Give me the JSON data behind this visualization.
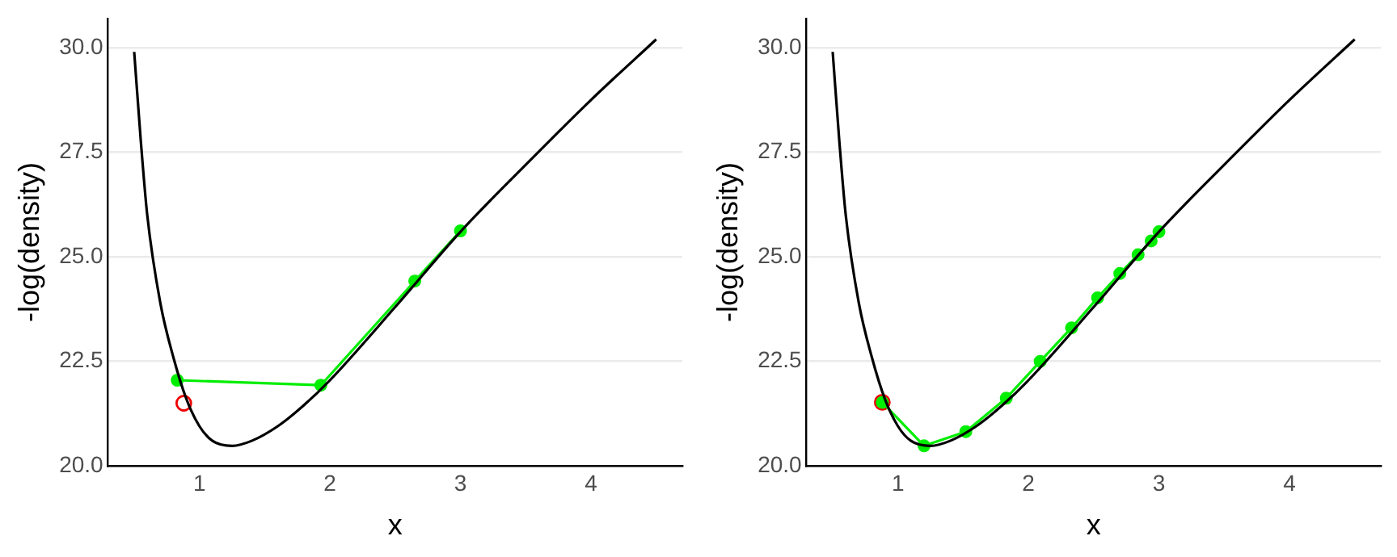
{
  "chart_data": [
    {
      "type": "line",
      "xlabel": "x",
      "ylabel": "-log(density)",
      "xlim": [
        0.3,
        4.7
      ],
      "ylim": [
        20,
        30.7
      ],
      "xticks": [
        1,
        2,
        3,
        4
      ],
      "yticks": [
        {
          "value": 20,
          "label": "20.0"
        },
        {
          "value": 22.5,
          "label": "22.5"
        },
        {
          "value": 25,
          "label": "25.0"
        },
        {
          "value": 27.5,
          "label": "27.5"
        },
        {
          "value": 30,
          "label": "30.0"
        }
      ],
      "grid": "y",
      "legend": false,
      "series": [
        {
          "type": "line",
          "color": "#000000",
          "marker": "none",
          "x": [
            0.5,
            0.55,
            0.6,
            0.7,
            0.8,
            0.9,
            1.0,
            1.1,
            1.25,
            1.4,
            1.6,
            1.8,
            2.0,
            2.5,
            3.0,
            3.5,
            4.0,
            4.5
          ],
          "values": [
            29.9,
            27.8,
            26.0,
            23.9,
            22.6,
            21.6,
            20.95,
            20.6,
            20.48,
            20.6,
            20.95,
            21.45,
            22.05,
            23.8,
            25.6,
            27.2,
            28.75,
            30.2
          ]
        },
        {
          "type": "line",
          "color": "#00ee00",
          "marker": "circle",
          "x": [
            0.83,
            1.93,
            2.65,
            3.0
          ],
          "values": [
            22.05,
            21.93,
            24.42,
            25.62
          ]
        },
        {
          "type": "scatter",
          "color": "#ee0000",
          "marker": "circle",
          "x": [
            0.88
          ],
          "values": [
            21.5
          ]
        }
      ]
    },
    {
      "type": "line",
      "xlabel": "x",
      "ylabel": "-log(density)",
      "xlim": [
        0.3,
        4.7
      ],
      "ylim": [
        20,
        30.7
      ],
      "xticks": [
        1,
        2,
        3,
        4
      ],
      "yticks": [
        {
          "value": 20,
          "label": "20.0"
        },
        {
          "value": 22.5,
          "label": "22.5"
        },
        {
          "value": 25,
          "label": "25.0"
        },
        {
          "value": 27.5,
          "label": "27.5"
        },
        {
          "value": 30,
          "label": "30.0"
        }
      ],
      "grid": "y",
      "legend": false,
      "series": [
        {
          "type": "line",
          "color": "#000000",
          "marker": "none",
          "x": [
            0.5,
            0.55,
            0.6,
            0.7,
            0.8,
            0.9,
            1.0,
            1.1,
            1.25,
            1.4,
            1.6,
            1.8,
            2.0,
            2.5,
            3.0,
            3.5,
            4.0,
            4.5
          ],
          "values": [
            29.9,
            27.8,
            26.0,
            23.9,
            22.6,
            21.6,
            20.95,
            20.6,
            20.48,
            20.6,
            20.95,
            21.45,
            22.05,
            23.8,
            25.6,
            27.2,
            28.75,
            30.2
          ]
        },
        {
          "type": "line",
          "color": "#00ee00",
          "marker": "circle",
          "x": [
            0.88,
            1.2,
            1.52,
            1.83,
            2.09,
            2.33,
            2.53,
            2.7,
            2.84,
            2.94,
            3.0
          ],
          "values": [
            21.52,
            20.48,
            20.82,
            21.62,
            22.5,
            23.3,
            24.02,
            24.6,
            25.05,
            25.38,
            25.6
          ]
        },
        {
          "type": "scatter",
          "color": "#ee0000",
          "marker": "circle",
          "x": [
            0.88
          ],
          "values": [
            21.52
          ]
        }
      ]
    }
  ]
}
